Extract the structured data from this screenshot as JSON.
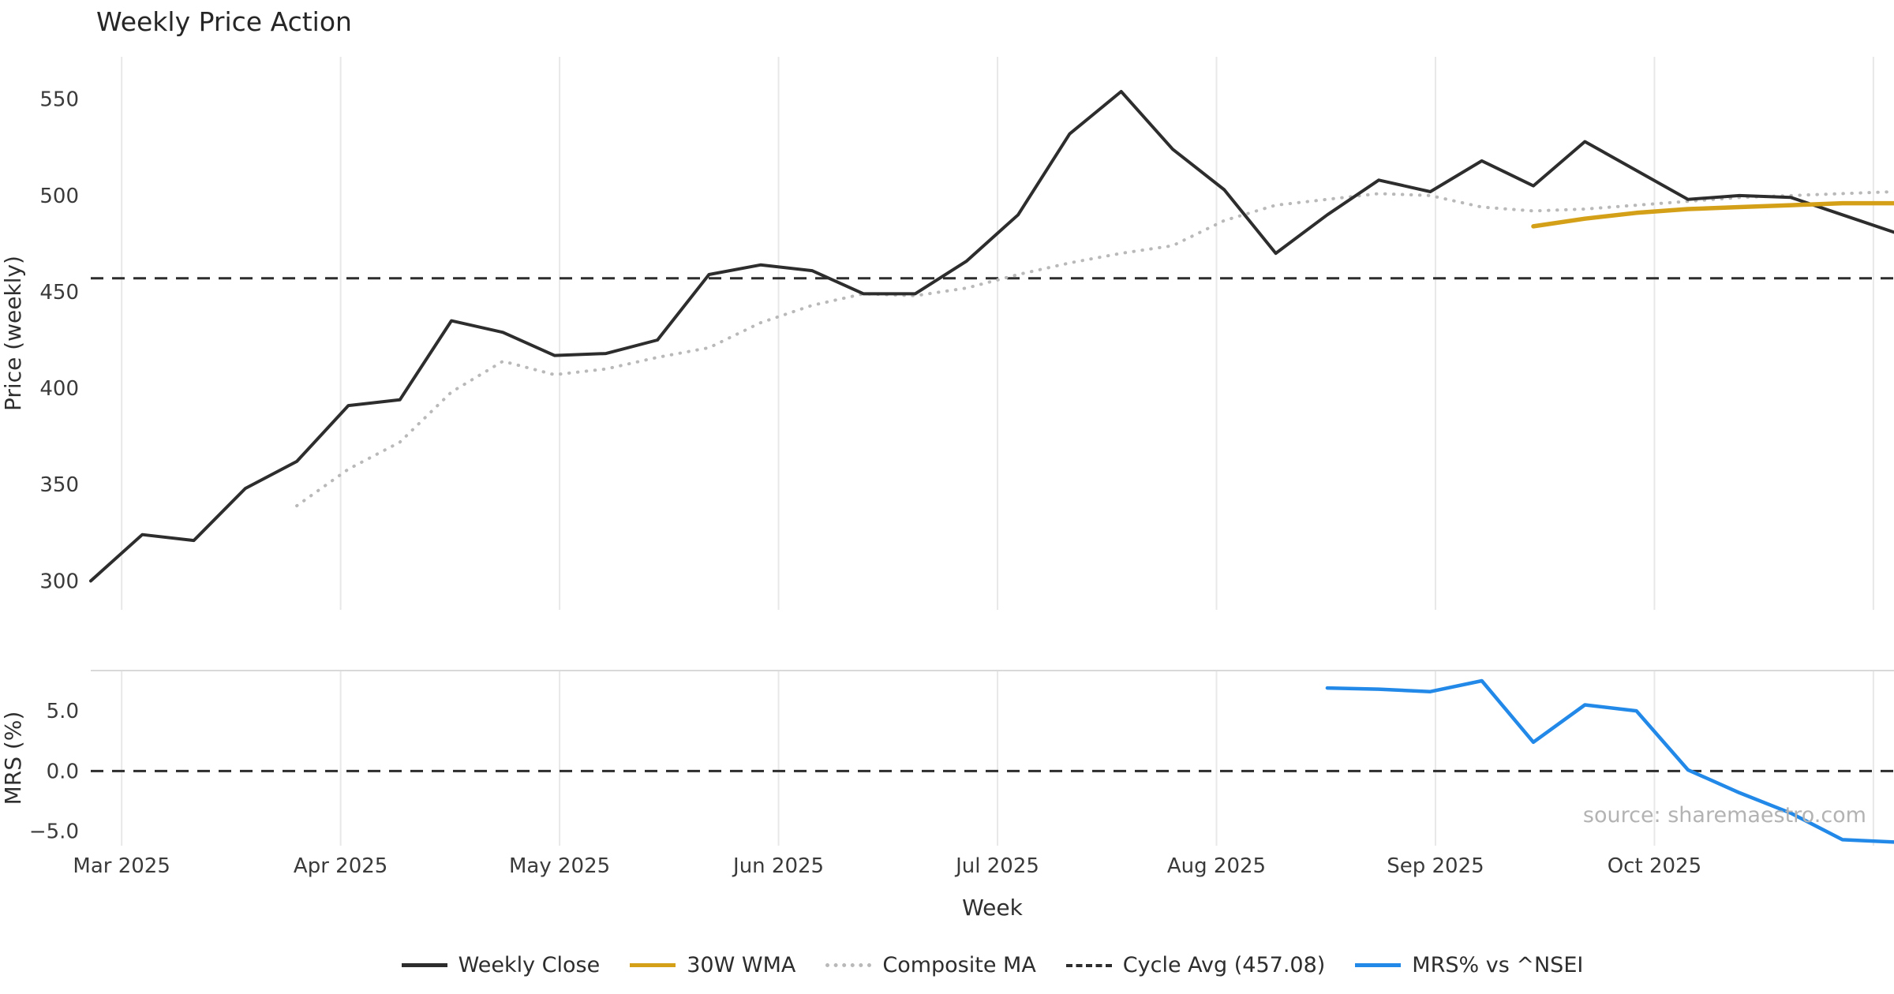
{
  "chart_data": {
    "type": "line",
    "title": "Weekly Price Action",
    "source": "source: sharemaestro.com",
    "background": "#ffffff",
    "gridline_color": "#e8e8e8",
    "x": {
      "label": "Week",
      "n": 36,
      "month_ticks": [
        {
          "label": "Mar 2025",
          "i": 0.6
        },
        {
          "label": "Apr 2025",
          "i": 4.85
        },
        {
          "label": "May 2025",
          "i": 9.1
        },
        {
          "label": "Jun 2025",
          "i": 13.35
        },
        {
          "label": "Jul 2025",
          "i": 17.6
        },
        {
          "label": "Aug 2025",
          "i": 21.85
        },
        {
          "label": "Sep 2025",
          "i": 26.1
        },
        {
          "label": "Oct 2025",
          "i": 30.35
        },
        {
          "label": "",
          "i": 34.6
        }
      ]
    },
    "panels": [
      {
        "name": "price",
        "ylabel": "Price (weekly)",
        "ylim": [
          285,
          572
        ],
        "yticks": [
          {
            "label": "550",
            "value": 550
          },
          {
            "label": "500",
            "value": 500
          },
          {
            "label": "450",
            "value": 450
          },
          {
            "label": "400",
            "value": 400
          },
          {
            "label": "350",
            "value": 350
          },
          {
            "label": "300",
            "value": 300
          }
        ],
        "hline": {
          "label": "Cycle Avg (457.08)",
          "value": 457.08,
          "color": "#2d2d2d",
          "style": "dashed"
        },
        "series": [
          {
            "name": "Composite MA",
            "data_name": "composite-ma-line",
            "color": "#b9b9b9",
            "style": "dotted",
            "width": 4,
            "values": [
              null,
              null,
              null,
              null,
              339,
              358,
              372,
              398,
              414,
              407,
              410,
              416,
              421,
              434,
              443,
              449,
              448,
              452,
              459,
              465,
              470,
              474,
              487,
              495,
              498,
              501,
              500,
              494,
              492,
              493,
              495,
              497,
              499,
              500,
              501,
              502
            ]
          },
          {
            "name": "Weekly Close",
            "data_name": "weekly-close-line",
            "color": "#2d2d2d",
            "style": "solid",
            "width": 4,
            "values": [
              300,
              324,
              321,
              348,
              362,
              391,
              394,
              435,
              429,
              417,
              418,
              425,
              459,
              464,
              461,
              449,
              449,
              466,
              490,
              532,
              554,
              524,
              503,
              470,
              490,
              508,
              502,
              518,
              505,
              528,
              513,
              498,
              500,
              499,
              490,
              481
            ]
          },
          {
            "name": "30W WMA",
            "data_name": "wma-30w-line",
            "color": "#d4a017",
            "style": "solid",
            "width": 5.5,
            "values": [
              null,
              null,
              null,
              null,
              null,
              null,
              null,
              null,
              null,
              null,
              null,
              null,
              null,
              null,
              null,
              null,
              null,
              null,
              null,
              null,
              null,
              null,
              null,
              null,
              null,
              null,
              null,
              null,
              484,
              488,
              491,
              493,
              494,
              495,
              496,
              496
            ]
          }
        ]
      },
      {
        "name": "mrs",
        "ylabel": "MRS (%)",
        "ylim": [
          -6.2,
          8.35
        ],
        "yticks": [
          {
            "label": "5.0",
            "value": 5
          },
          {
            "label": "0.0",
            "value": 0
          },
          {
            "label": "−5.0",
            "value": -5
          }
        ],
        "hline": {
          "label": "zero-line",
          "value": 0,
          "color": "#2d2d2d",
          "style": "dashed"
        },
        "series": [
          {
            "name": "MRS% vs ^NSEI",
            "data_name": "mrs-line",
            "color": "#2289e8",
            "style": "solid",
            "width": 4.5,
            "values": [
              null,
              null,
              null,
              null,
              null,
              null,
              null,
              null,
              null,
              null,
              null,
              null,
              null,
              null,
              null,
              null,
              null,
              null,
              null,
              null,
              null,
              null,
              null,
              null,
              6.9,
              6.8,
              6.6,
              7.5,
              2.4,
              5.5,
              5.0,
              0.1,
              -1.8,
              -3.5,
              -5.7,
              -5.9
            ]
          }
        ]
      }
    ],
    "legend": {
      "items": [
        {
          "label": "Weekly Close",
          "color": "#2d2d2d",
          "dash": "solid"
        },
        {
          "label": "30W WMA",
          "color": "#d4a017",
          "dash": "solid"
        },
        {
          "label": "Composite MA",
          "color": "#b9b9b9",
          "dash": "dotted"
        },
        {
          "label": "Cycle Avg (457.08)",
          "color": "#2d2d2d",
          "dash": "dashed"
        },
        {
          "label": "MRS% vs ^NSEI",
          "color": "#2289e8",
          "dash": "solid"
        }
      ]
    }
  }
}
